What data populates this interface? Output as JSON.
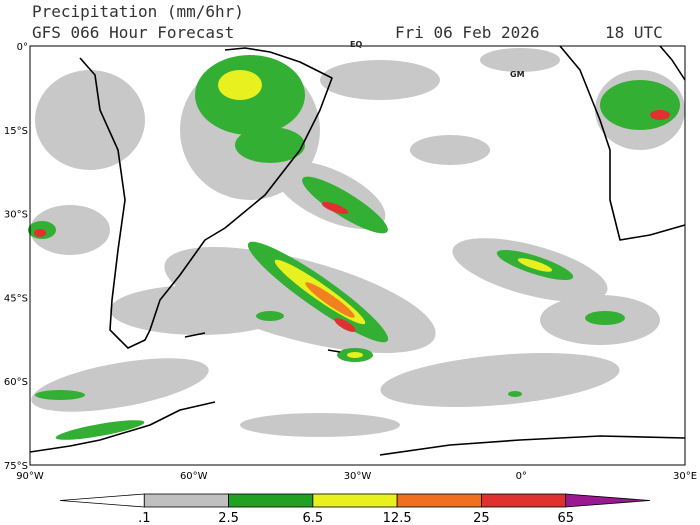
{
  "header": {
    "title": "Precipitation (mm/6hr)",
    "model": "GFS 066 Hour Forecast",
    "date": "Fri 06 Feb 2026",
    "time": "18 UTC"
  },
  "map": {
    "lat_labels": [
      "0°",
      "15°S",
      "30°S",
      "45°S",
      "60°S",
      "75°S"
    ],
    "lon_labels": [
      "90°W",
      "60°W",
      "30°W",
      "0°",
      "30°E"
    ],
    "markers": [
      "EQ",
      "GM"
    ]
  },
  "legend": {
    "labels": [
      ".1",
      "2.5",
      "6.5",
      "12.5",
      "25",
      "65"
    ],
    "colors": [
      "#ffffff",
      "#c0c0c0",
      "#22a022",
      "#e8f020",
      "#f07020",
      "#e03030",
      "#9a1890"
    ]
  }
}
